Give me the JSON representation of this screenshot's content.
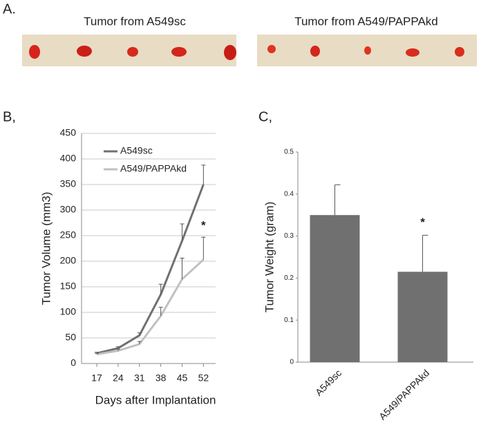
{
  "panels": {
    "a": "A.",
    "b": "B,",
    "c": "C,"
  },
  "photos": [
    {
      "caption": "Tumor from A549sc"
    },
    {
      "caption": "Tumor from A549/PAPPAkd"
    }
  ],
  "chart_data": [
    {
      "type": "line",
      "x_label": "Days after Implantation",
      "y_label": "Tumor Volume (mm3)",
      "x": [
        17,
        24,
        31,
        38,
        45,
        52
      ],
      "xlim": [
        12,
        56
      ],
      "xticks": [
        17,
        24,
        31,
        38,
        45,
        52
      ],
      "ylim": [
        0,
        450
      ],
      "yticks": [
        0,
        50,
        100,
        150,
        200,
        250,
        300,
        350,
        400,
        450
      ],
      "grid": true,
      "legend": "upper-left",
      "annotation": "*",
      "series": [
        {
          "name": "A549sc",
          "color": "#707070",
          "values": [
            20,
            30,
            55,
            135,
            240,
            350
          ],
          "errors": [
            2,
            3,
            5,
            20,
            33,
            38
          ]
        },
        {
          "name": "A549/PAPPAkd",
          "color": "#c0c0c0",
          "values": [
            18,
            25,
            38,
            93,
            165,
            203
          ],
          "errors": [
            2,
            3,
            5,
            17,
            41,
            44
          ]
        }
      ]
    },
    {
      "type": "bar",
      "y_label": "Tumor Weight (gram)",
      "categories": [
        "A549sc",
        "A549/PAPPAkd"
      ],
      "values": [
        0.35,
        0.215
      ],
      "errors": [
        0.072,
        0.087
      ],
      "color": "#707070",
      "ylim": [
        0,
        0.5
      ],
      "yticks": [
        0,
        0.1,
        0.2,
        0.3,
        0.4,
        0.5
      ],
      "grid": false,
      "annotation": "*"
    }
  ]
}
